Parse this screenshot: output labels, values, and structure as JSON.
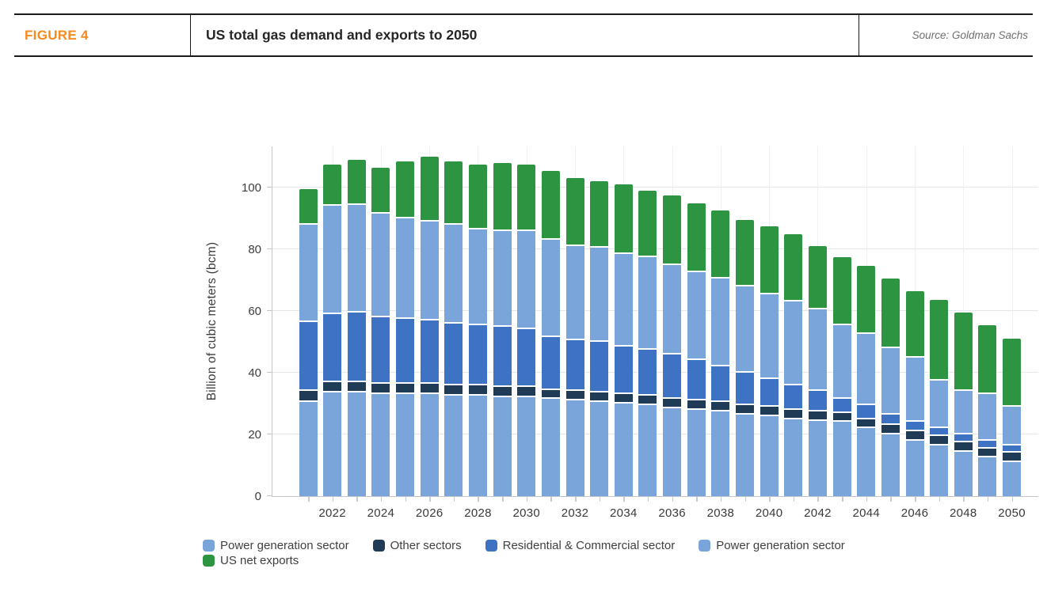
{
  "header": {
    "figure_label": "FIGURE 4",
    "title": "US total gas demand and exports to 2050",
    "source": "Source: Goldman Sachs"
  },
  "chart_data": {
    "type": "bar",
    "stacked": true,
    "ylabel": "Billion of cubic meters (bcm)",
    "ylim": [
      0,
      113
    ],
    "yticks": [
      0,
      20,
      40,
      60,
      80,
      100
    ],
    "grid": "horizontal-and-faint-vertical",
    "legend_position": "bottom",
    "years": [
      2021,
      2022,
      2023,
      2024,
      2025,
      2026,
      2027,
      2028,
      2029,
      2030,
      2031,
      2032,
      2033,
      2034,
      2035,
      2036,
      2037,
      2038,
      2039,
      2040,
      2041,
      2042,
      2043,
      2044,
      2045,
      2046,
      2047,
      2048,
      2049,
      2050
    ],
    "xtick_labels": [
      "2022",
      "2024",
      "2026",
      "2028",
      "2030",
      "2032",
      "2034",
      "2036",
      "2038",
      "2040",
      "2042",
      "2044",
      "2046",
      "2048",
      "2050"
    ],
    "series": [
      {
        "name": "Power generation sector",
        "color": "#79A5DB",
        "values": [
          31,
          34,
          34,
          33.5,
          33.5,
          33.5,
          33,
          33,
          32.5,
          32.5,
          32,
          31.5,
          31,
          30.5,
          30,
          29,
          28.5,
          28,
          27,
          26.5,
          25.5,
          25,
          24.5,
          22.5,
          20.5,
          18.5,
          17,
          15,
          13,
          11.5
        ]
      },
      {
        "name": "Other sectors",
        "color": "#203B56",
        "values": [
          3.5,
          3.5,
          3.5,
          3.5,
          3.5,
          3.5,
          3.5,
          3.5,
          3.5,
          3.5,
          3,
          3,
          3,
          3,
          3,
          3,
          3,
          3,
          3,
          3,
          3,
          3,
          3,
          3,
          3,
          3,
          3,
          3,
          3,
          3
        ]
      },
      {
        "name": "Residential & Commercial sector",
        "color": "#3E73C4",
        "values": [
          22.5,
          22,
          22.5,
          21.5,
          21,
          20.5,
          20,
          19.5,
          19.5,
          18.5,
          17,
          16.5,
          16.5,
          15.5,
          15,
          14.5,
          13,
          11.5,
          10.5,
          9,
          8,
          6.5,
          4.5,
          4.5,
          3.5,
          3,
          2.5,
          2.5,
          2.5,
          2.5
        ]
      },
      {
        "name": "Power generation sector",
        "color": "#79A5DB",
        "values": [
          31.5,
          35,
          35,
          33.5,
          32.5,
          32,
          32,
          31,
          31,
          32,
          31.5,
          30.5,
          30.5,
          30,
          30,
          29,
          28.5,
          28.5,
          28,
          27.5,
          27,
          26.5,
          24,
          23,
          21.5,
          21,
          15.5,
          14,
          15,
          12.5
        ]
      },
      {
        "name": "US net exports",
        "color": "#2D9442",
        "values": [
          11,
          13,
          14,
          14.5,
          18,
          20.5,
          20,
          20.5,
          21.5,
          21,
          22,
          21.5,
          21,
          22,
          21,
          22,
          22,
          21.5,
          21,
          21.5,
          21.5,
          20,
          21.5,
          21.5,
          22,
          21,
          25.5,
          25,
          22,
          21.5
        ]
      }
    ],
    "legend_rows": [
      [
        {
          "label": "Power generation sector",
          "color": "#79A5DB"
        },
        {
          "label": "Other sectors",
          "color": "#203B56"
        },
        {
          "label": "Residential & Commercial sector",
          "color": "#3E73C4"
        },
        {
          "label": "Power generation sector",
          "color": "#79A5DB"
        }
      ],
      [
        {
          "label": "US net exports",
          "color": "#2D9442"
        }
      ]
    ]
  },
  "colors": {
    "accent_orange": "#F6891F",
    "power_generation_blue": "#79A5DB",
    "other_sectors_navy": "#203B56",
    "residential_commercial_blue": "#3E73C4",
    "net_exports_green": "#2D9442"
  }
}
